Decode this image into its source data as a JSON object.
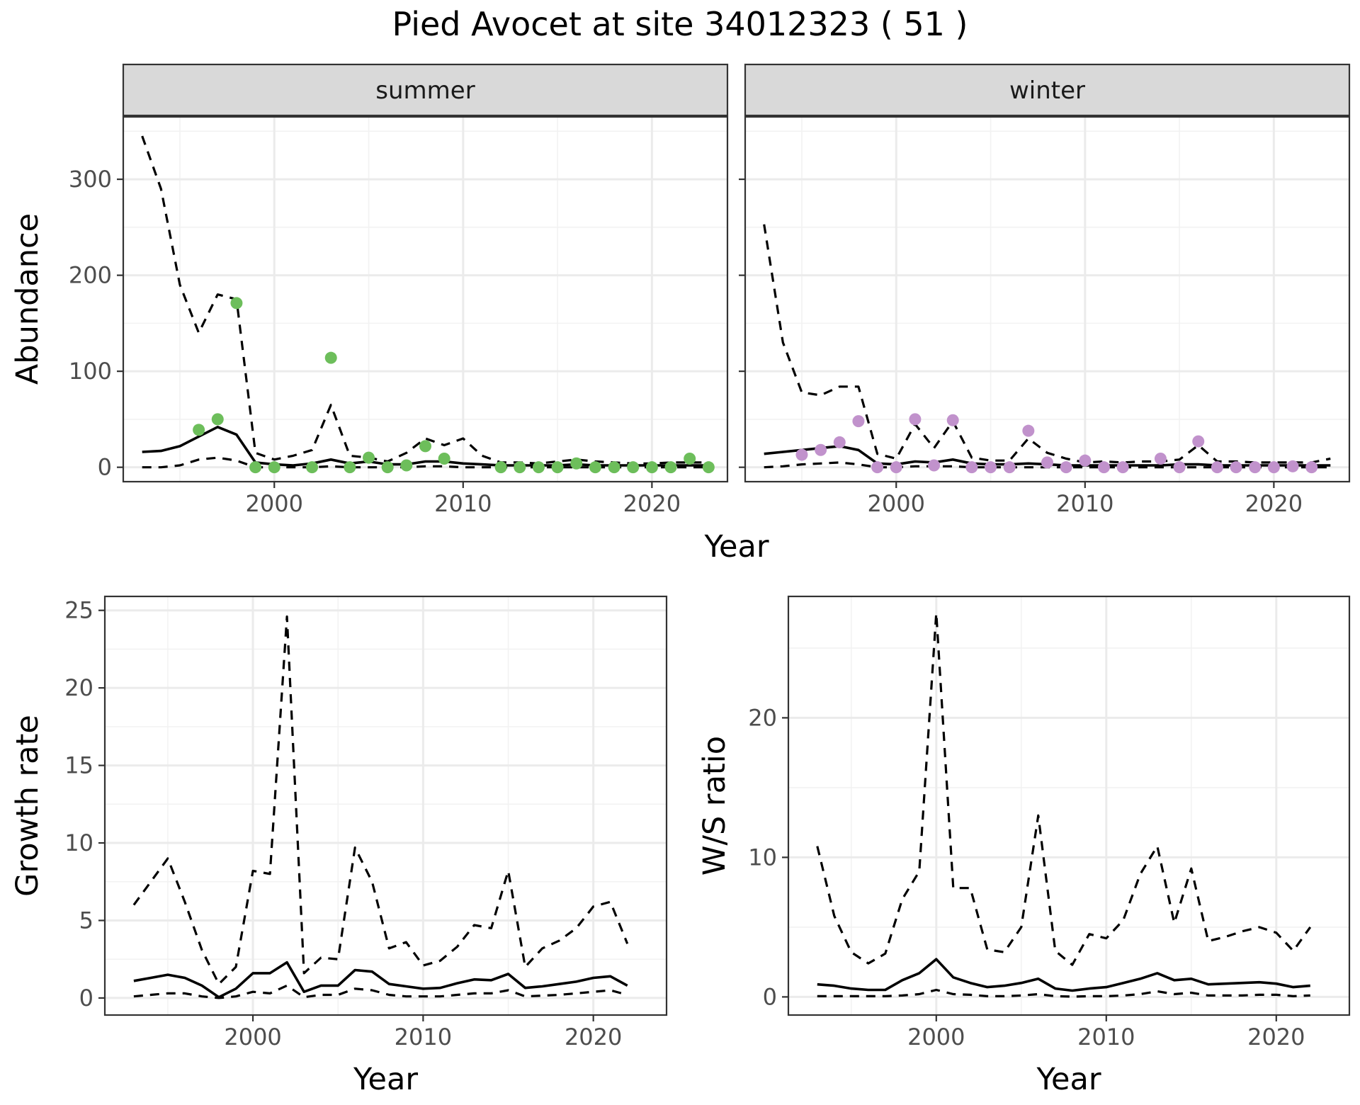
{
  "title": "Pied Avocet at site 34012323 ( 51 )",
  "colors": {
    "summer_points": "#6dbe5b",
    "winter_points": "#c192cc",
    "lines": "#000000",
    "strip": "#d9d9d9"
  },
  "chart_data": [
    {
      "type": "line",
      "panel": "summer",
      "strip_label": "summer",
      "xlabel": "Year",
      "ylabel": "Abundance",
      "xlim": [
        1992,
        2024
      ],
      "ylim": [
        -15,
        365
      ],
      "xticks": [
        2000,
        2010,
        2020
      ],
      "yticks": [
        0,
        100,
        200,
        300
      ],
      "grid": true,
      "x": [
        1993,
        1994,
        1995,
        1996,
        1997,
        1998,
        1999,
        2000,
        2001,
        2002,
        2003,
        2004,
        2005,
        2006,
        2007,
        2008,
        2009,
        2010,
        2011,
        2012,
        2013,
        2014,
        2015,
        2016,
        2017,
        2018,
        2019,
        2020,
        2021,
        2022,
        2023
      ],
      "series": [
        {
          "role": "mean",
          "style": "solid",
          "values": [
            16,
            17,
            22,
            32,
            42,
            34,
            5,
            3,
            2,
            4,
            8,
            4,
            6,
            3,
            3,
            6,
            6,
            4,
            3,
            2,
            2,
            2,
            2,
            3,
            2,
            2,
            2,
            2,
            2,
            2,
            2
          ]
        },
        {
          "role": "upper",
          "style": "dashed",
          "values": [
            345,
            290,
            190,
            140,
            180,
            175,
            15,
            8,
            12,
            18,
            65,
            12,
            10,
            6,
            15,
            30,
            23,
            30,
            12,
            5,
            5,
            4,
            6,
            8,
            6,
            5,
            4,
            4,
            5,
            5,
            5
          ]
        },
        {
          "role": "lower",
          "style": "dashed",
          "values": [
            0,
            0,
            2,
            8,
            10,
            7,
            0,
            0,
            0,
            0,
            1,
            0,
            0,
            0,
            0,
            1,
            1,
            0,
            0,
            0,
            0,
            0,
            0,
            0,
            0,
            0,
            0,
            0,
            0,
            0,
            0
          ]
        }
      ],
      "points": {
        "x": [
          1996,
          1997,
          1998,
          1999,
          2000,
          2002,
          2003,
          2004,
          2005,
          2006,
          2007,
          2008,
          2009,
          2012,
          2013,
          2014,
          2015,
          2016,
          2017,
          2018,
          2019,
          2020,
          2021,
          2022,
          2023
        ],
        "y": [
          39,
          50,
          171,
          0,
          0,
          0,
          114,
          0,
          10,
          0,
          2,
          22,
          9,
          0,
          0,
          0,
          0,
          4,
          0,
          0,
          0,
          0,
          0,
          9,
          0
        ]
      }
    },
    {
      "type": "line",
      "panel": "winter",
      "strip_label": "winter",
      "xlabel": "Year",
      "ylabel": "Abundance",
      "xlim": [
        1992,
        2024
      ],
      "ylim": [
        -15,
        365
      ],
      "xticks": [
        2000,
        2010,
        2020
      ],
      "yticks": [
        0,
        100,
        200,
        300
      ],
      "grid": true,
      "x": [
        1993,
        1994,
        1995,
        1996,
        1997,
        1998,
        1999,
        2000,
        2001,
        2002,
        2003,
        2004,
        2005,
        2006,
        2007,
        2008,
        2009,
        2010,
        2011,
        2012,
        2013,
        2014,
        2015,
        2016,
        2017,
        2018,
        2019,
        2020,
        2021,
        2022,
        2023
      ],
      "series": [
        {
          "role": "mean",
          "style": "solid",
          "values": [
            14,
            16,
            18,
            20,
            22,
            18,
            4,
            3,
            6,
            5,
            8,
            4,
            3,
            3,
            4,
            3,
            2,
            2,
            2,
            2,
            2,
            2,
            3,
            3,
            2,
            2,
            2,
            2,
            2,
            2,
            2
          ]
        },
        {
          "role": "upper",
          "style": "dashed",
          "values": [
            253,
            130,
            78,
            75,
            84,
            84,
            14,
            9,
            45,
            20,
            48,
            10,
            7,
            7,
            30,
            15,
            9,
            5,
            6,
            5,
            6,
            6,
            8,
            23,
            6,
            6,
            5,
            5,
            5,
            5,
            9
          ]
        },
        {
          "role": "lower",
          "style": "dashed",
          "values": [
            0,
            1,
            3,
            4,
            5,
            3,
            0,
            0,
            1,
            1,
            1,
            0,
            0,
            0,
            0,
            0,
            0,
            0,
            0,
            0,
            0,
            0,
            0,
            0,
            0,
            0,
            0,
            0,
            0,
            0,
            0
          ]
        }
      ],
      "points": {
        "x": [
          1995,
          1996,
          1997,
          1998,
          1999,
          2000,
          2001,
          2002,
          2003,
          2004,
          2005,
          2006,
          2007,
          2008,
          2009,
          2010,
          2011,
          2012,
          2014,
          2015,
          2016,
          2017,
          2018,
          2019,
          2020,
          2021,
          2022
        ],
        "y": [
          13,
          18,
          26,
          48,
          0,
          0,
          50,
          2,
          49,
          0,
          0,
          0,
          38,
          5,
          0,
          7,
          0,
          0,
          9,
          0,
          27,
          0,
          0,
          0,
          0,
          1,
          0
        ]
      }
    },
    {
      "type": "line",
      "panel": "growth",
      "xlabel": "Year",
      "ylabel": "Growth rate",
      "xlim": [
        1991.3,
        2024.3
      ],
      "ylim": [
        -1.1,
        25.9
      ],
      "xticks": [
        2000,
        2010,
        2020
      ],
      "yticks": [
        0,
        5,
        10,
        15,
        20,
        25
      ],
      "grid": true,
      "x": [
        1993,
        1994,
        1995,
        1996,
        1997,
        1998,
        1999,
        2000,
        2001,
        2002,
        2003,
        2004,
        2005,
        2006,
        2007,
        2008,
        2009,
        2010,
        2011,
        2012,
        2013,
        2014,
        2015,
        2016,
        2017,
        2018,
        2019,
        2020,
        2021,
        2022
      ],
      "series": [
        {
          "role": "mean",
          "style": "solid",
          "values": [
            1.1,
            1.3,
            1.5,
            1.3,
            0.8,
            0.05,
            0.6,
            1.6,
            1.6,
            2.3,
            0.4,
            0.8,
            0.8,
            1.8,
            1.7,
            0.9,
            0.75,
            0.6,
            0.65,
            0.95,
            1.2,
            1.15,
            1.55,
            0.65,
            0.75,
            0.9,
            1.05,
            1.3,
            1.4,
            0.8
          ]
        },
        {
          "role": "upper",
          "style": "dashed",
          "values": [
            6,
            7.5,
            9,
            6.2,
            3.1,
            0.9,
            2.0,
            8.2,
            8.0,
            24.6,
            1.6,
            2.6,
            2.5,
            9.7,
            7.5,
            3.2,
            3.6,
            2.1,
            2.4,
            3.3,
            4.7,
            4.5,
            8.2,
            2.0,
            3.2,
            3.7,
            4.5,
            5.9,
            6.2,
            3.5
          ]
        },
        {
          "role": "lower",
          "style": "dashed",
          "values": [
            0.1,
            0.2,
            0.3,
            0.3,
            0.1,
            0,
            0.1,
            0.4,
            0.3,
            0.8,
            0.05,
            0.2,
            0.2,
            0.6,
            0.5,
            0.2,
            0.1,
            0.1,
            0.1,
            0.2,
            0.3,
            0.3,
            0.5,
            0.1,
            0.15,
            0.2,
            0.3,
            0.4,
            0.5,
            0.2
          ]
        }
      ]
    },
    {
      "type": "line",
      "panel": "ws-ratio",
      "xlabel": "Year",
      "ylabel": "W/S ratio",
      "xlim": [
        1991.3,
        2024.3
      ],
      "ylim": [
        -1.3,
        28.7
      ],
      "xticks": [
        2000,
        2010,
        2020
      ],
      "yticks": [
        0,
        10,
        20
      ],
      "grid": true,
      "x": [
        1993,
        1994,
        1995,
        1996,
        1997,
        1998,
        1999,
        2000,
        2001,
        2002,
        2003,
        2004,
        2005,
        2006,
        2007,
        2008,
        2009,
        2010,
        2011,
        2012,
        2013,
        2014,
        2015,
        2016,
        2017,
        2018,
        2019,
        2020,
        2021,
        2022
      ],
      "series": [
        {
          "role": "mean",
          "style": "solid",
          "values": [
            0.9,
            0.8,
            0.6,
            0.5,
            0.5,
            1.2,
            1.7,
            2.7,
            1.4,
            1.0,
            0.7,
            0.8,
            1.0,
            1.3,
            0.6,
            0.45,
            0.6,
            0.7,
            1.0,
            1.3,
            1.7,
            1.2,
            1.3,
            0.9,
            0.95,
            1.0,
            1.05,
            0.95,
            0.7,
            0.8
          ]
        },
        {
          "role": "upper",
          "style": "dashed",
          "values": [
            10.8,
            5.8,
            3.2,
            2.4,
            3.1,
            7.0,
            9.0,
            27.5,
            7.8,
            7.8,
            3.4,
            3.2,
            5.0,
            13.0,
            3.3,
            2.3,
            4.5,
            4.2,
            5.5,
            8.8,
            10.8,
            5.3,
            9.2,
            4.0,
            4.3,
            4.7,
            5.0,
            4.6,
            3.3,
            5.0
          ]
        },
        {
          "role": "lower",
          "style": "dashed",
          "values": [
            0.05,
            0.05,
            0.05,
            0.05,
            0.05,
            0.1,
            0.2,
            0.5,
            0.2,
            0.15,
            0.05,
            0.05,
            0.1,
            0.2,
            0.05,
            0.02,
            0.05,
            0.05,
            0.1,
            0.2,
            0.4,
            0.2,
            0.3,
            0.1,
            0.1,
            0.1,
            0.15,
            0.15,
            0.05,
            0.1
          ]
        }
      ]
    }
  ]
}
